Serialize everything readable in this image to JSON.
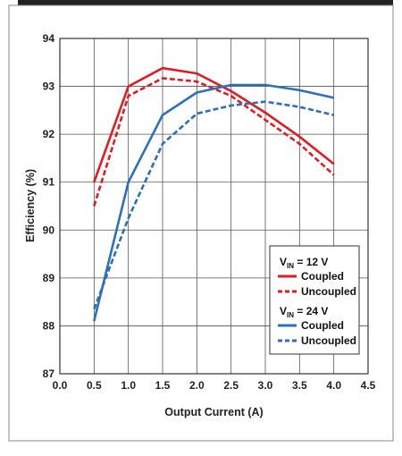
{
  "chart_data": {
    "type": "line",
    "xlabel": "Output Current (A)",
    "ylabel": "Efficiency (%)",
    "xlim": [
      0.0,
      4.5
    ],
    "ylim": [
      87,
      94
    ],
    "x_ticks": [
      "0.0",
      "0.5",
      "1.0",
      "1.5",
      "2.0",
      "2.5",
      "3.0",
      "3.5",
      "4.0",
      "4.5"
    ],
    "y_ticks": [
      "87",
      "88",
      "89",
      "90",
      "91",
      "92",
      "93",
      "94"
    ],
    "grid": true,
    "legend_position": "bottom-right",
    "legend": {
      "group_12": {
        "prefix": "V",
        "sub": "IN",
        "suffix": " = 12 V"
      },
      "group_24": {
        "prefix": "V",
        "sub": "IN",
        "suffix": " = 24 V"
      }
    },
    "colors": {
      "red": "#e31b23",
      "blue": "#2c6fba"
    },
    "series": [
      {
        "name": "Coupled",
        "group": "12V",
        "color": "#e31b23",
        "dashed": false,
        "x": [
          0.5,
          1.0,
          1.5,
          2.0,
          2.5,
          3.0,
          3.5,
          4.0
        ],
        "y": [
          91.0,
          93.0,
          93.38,
          93.27,
          92.9,
          92.45,
          91.95,
          91.38
        ]
      },
      {
        "name": "Uncoupled",
        "group": "12V",
        "color": "#e31b23",
        "dashed": true,
        "x": [
          0.5,
          1.0,
          1.5,
          2.0,
          2.5,
          3.0,
          3.5,
          4.0
        ],
        "y": [
          90.5,
          92.8,
          93.17,
          93.1,
          92.8,
          92.3,
          91.8,
          91.15
        ]
      },
      {
        "name": "Coupled",
        "group": "24V",
        "color": "#2c6fba",
        "dashed": false,
        "x": [
          0.5,
          1.0,
          1.5,
          2.0,
          2.5,
          3.0,
          3.5,
          4.0
        ],
        "y": [
          88.1,
          91.0,
          92.4,
          92.87,
          93.03,
          93.03,
          92.92,
          92.76
        ]
      },
      {
        "name": "Uncoupled",
        "group": "24V",
        "color": "#2c6fba",
        "dashed": true,
        "x": [
          0.5,
          1.0,
          1.5,
          2.0,
          2.5,
          3.0,
          3.5,
          4.0
        ],
        "y": [
          88.35,
          90.25,
          91.8,
          92.43,
          92.6,
          92.68,
          92.57,
          92.4
        ]
      }
    ]
  }
}
